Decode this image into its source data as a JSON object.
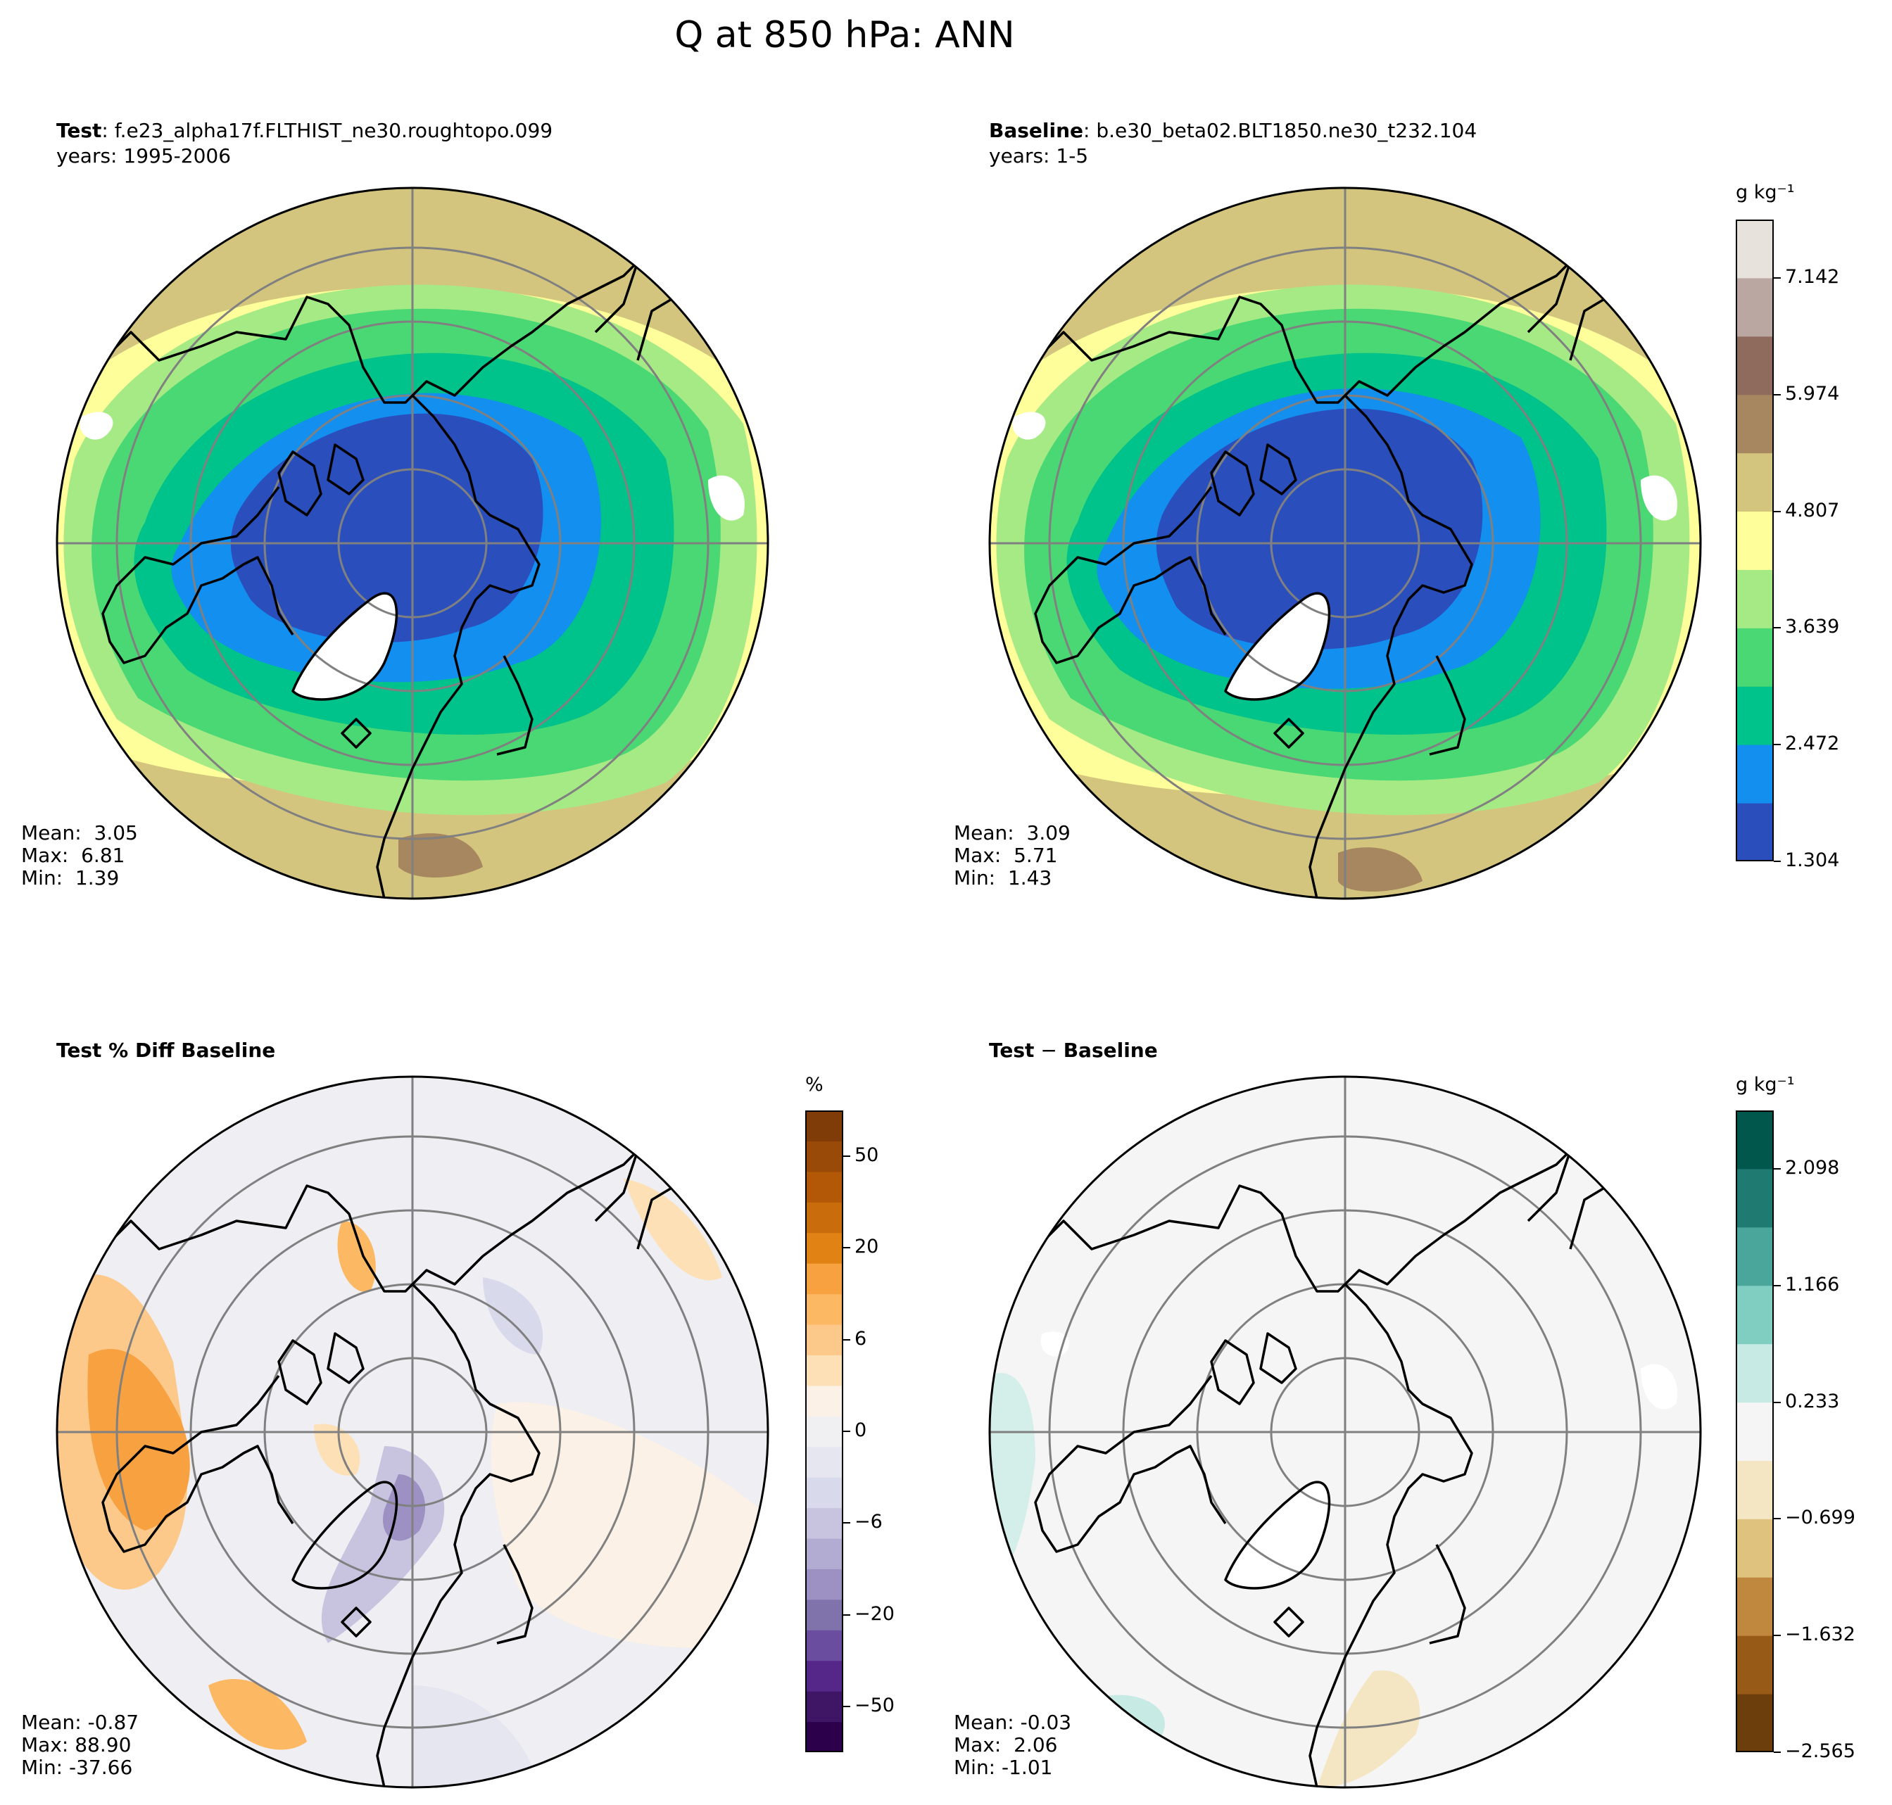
{
  "figure": {
    "title": "Q at 850 hPa: ANN"
  },
  "panels": {
    "test": {
      "label": "Test",
      "case": "f.e23_alpha17f.FLTHIST_ne30.roughtopo.099",
      "years": "years: 1995-2006",
      "stats": {
        "mean": "Mean:  3.05",
        "max": "Max:  6.81",
        "min": "Min:  1.39"
      }
    },
    "baseline": {
      "label": "Baseline",
      "case": "b.e30_beta02.BLT1850.ne30_t232.104",
      "years": "years: 1-5",
      "stats": {
        "mean": "Mean:  3.09",
        "max": "Max:  5.71",
        "min": "Min:  1.43"
      }
    },
    "pctdiff": {
      "label": "Test % Diff Baseline",
      "stats": {
        "mean": "Mean: -0.87",
        "max": "Max: 88.90",
        "min": "Min: -37.66"
      }
    },
    "diff": {
      "label_a": "Test",
      "label_op": "−",
      "label_b": "Baseline",
      "stats": {
        "mean": "Mean: -0.03",
        "max": "Max:  2.06",
        "min": "Min: -1.01"
      }
    }
  },
  "colorbars": {
    "main": {
      "unit": "g kg⁻¹",
      "colors": [
        "#2a4fbd",
        "#138ff0",
        "#00c28b",
        "#49d873",
        "#a6ea86",
        "#fefe9a",
        "#d4c57e",
        "#a68760",
        "#8f6b5e",
        "#bba7a1",
        "#e8e2dd"
      ],
      "ticks": [
        "1.304",
        "2.472",
        "3.639",
        "4.807",
        "5.974",
        "7.142"
      ],
      "tick_positions": [
        0,
        2,
        4,
        6,
        8,
        10
      ],
      "nbins": 11
    },
    "pct": {
      "unit": "%",
      "colors": [
        "#2d004b",
        "#3f1565",
        "#542788",
        "#6b4da0",
        "#8073ac",
        "#9d90c2",
        "#b2abd2",
        "#c8c4e0",
        "#d8daeb",
        "#e6e6f1",
        "#f0f0f2",
        "#fbf1e6",
        "#fee0b6",
        "#fdc98a",
        "#fdb863",
        "#f7a140",
        "#e08214",
        "#c96c0c",
        "#b35806",
        "#9a4a08",
        "#7f3b08"
      ],
      "ticks": [
        "−50",
        "−20",
        "−6",
        "0",
        "6",
        "20",
        "50"
      ],
      "tick_positions": [
        1.5,
        4.5,
        7.5,
        10.5,
        13.5,
        16.5,
        19.5
      ],
      "nbins": 21
    },
    "diff": {
      "unit": "g kg⁻¹",
      "colors": [
        "#6b3e0b",
        "#985a17",
        "#c0873f",
        "#dfc27d",
        "#f5e6c3",
        "#f4f5f4",
        "#c7eae5",
        "#80cdc1",
        "#4aa59a",
        "#1f7b72",
        "#01574c"
      ],
      "ticks": [
        "−2.565",
        "−1.632",
        "−0.699",
        "0.233",
        "1.166",
        "2.098"
      ],
      "tick_positions": [
        0,
        2,
        4,
        6,
        8,
        10
      ],
      "nbins": 11
    }
  }
}
